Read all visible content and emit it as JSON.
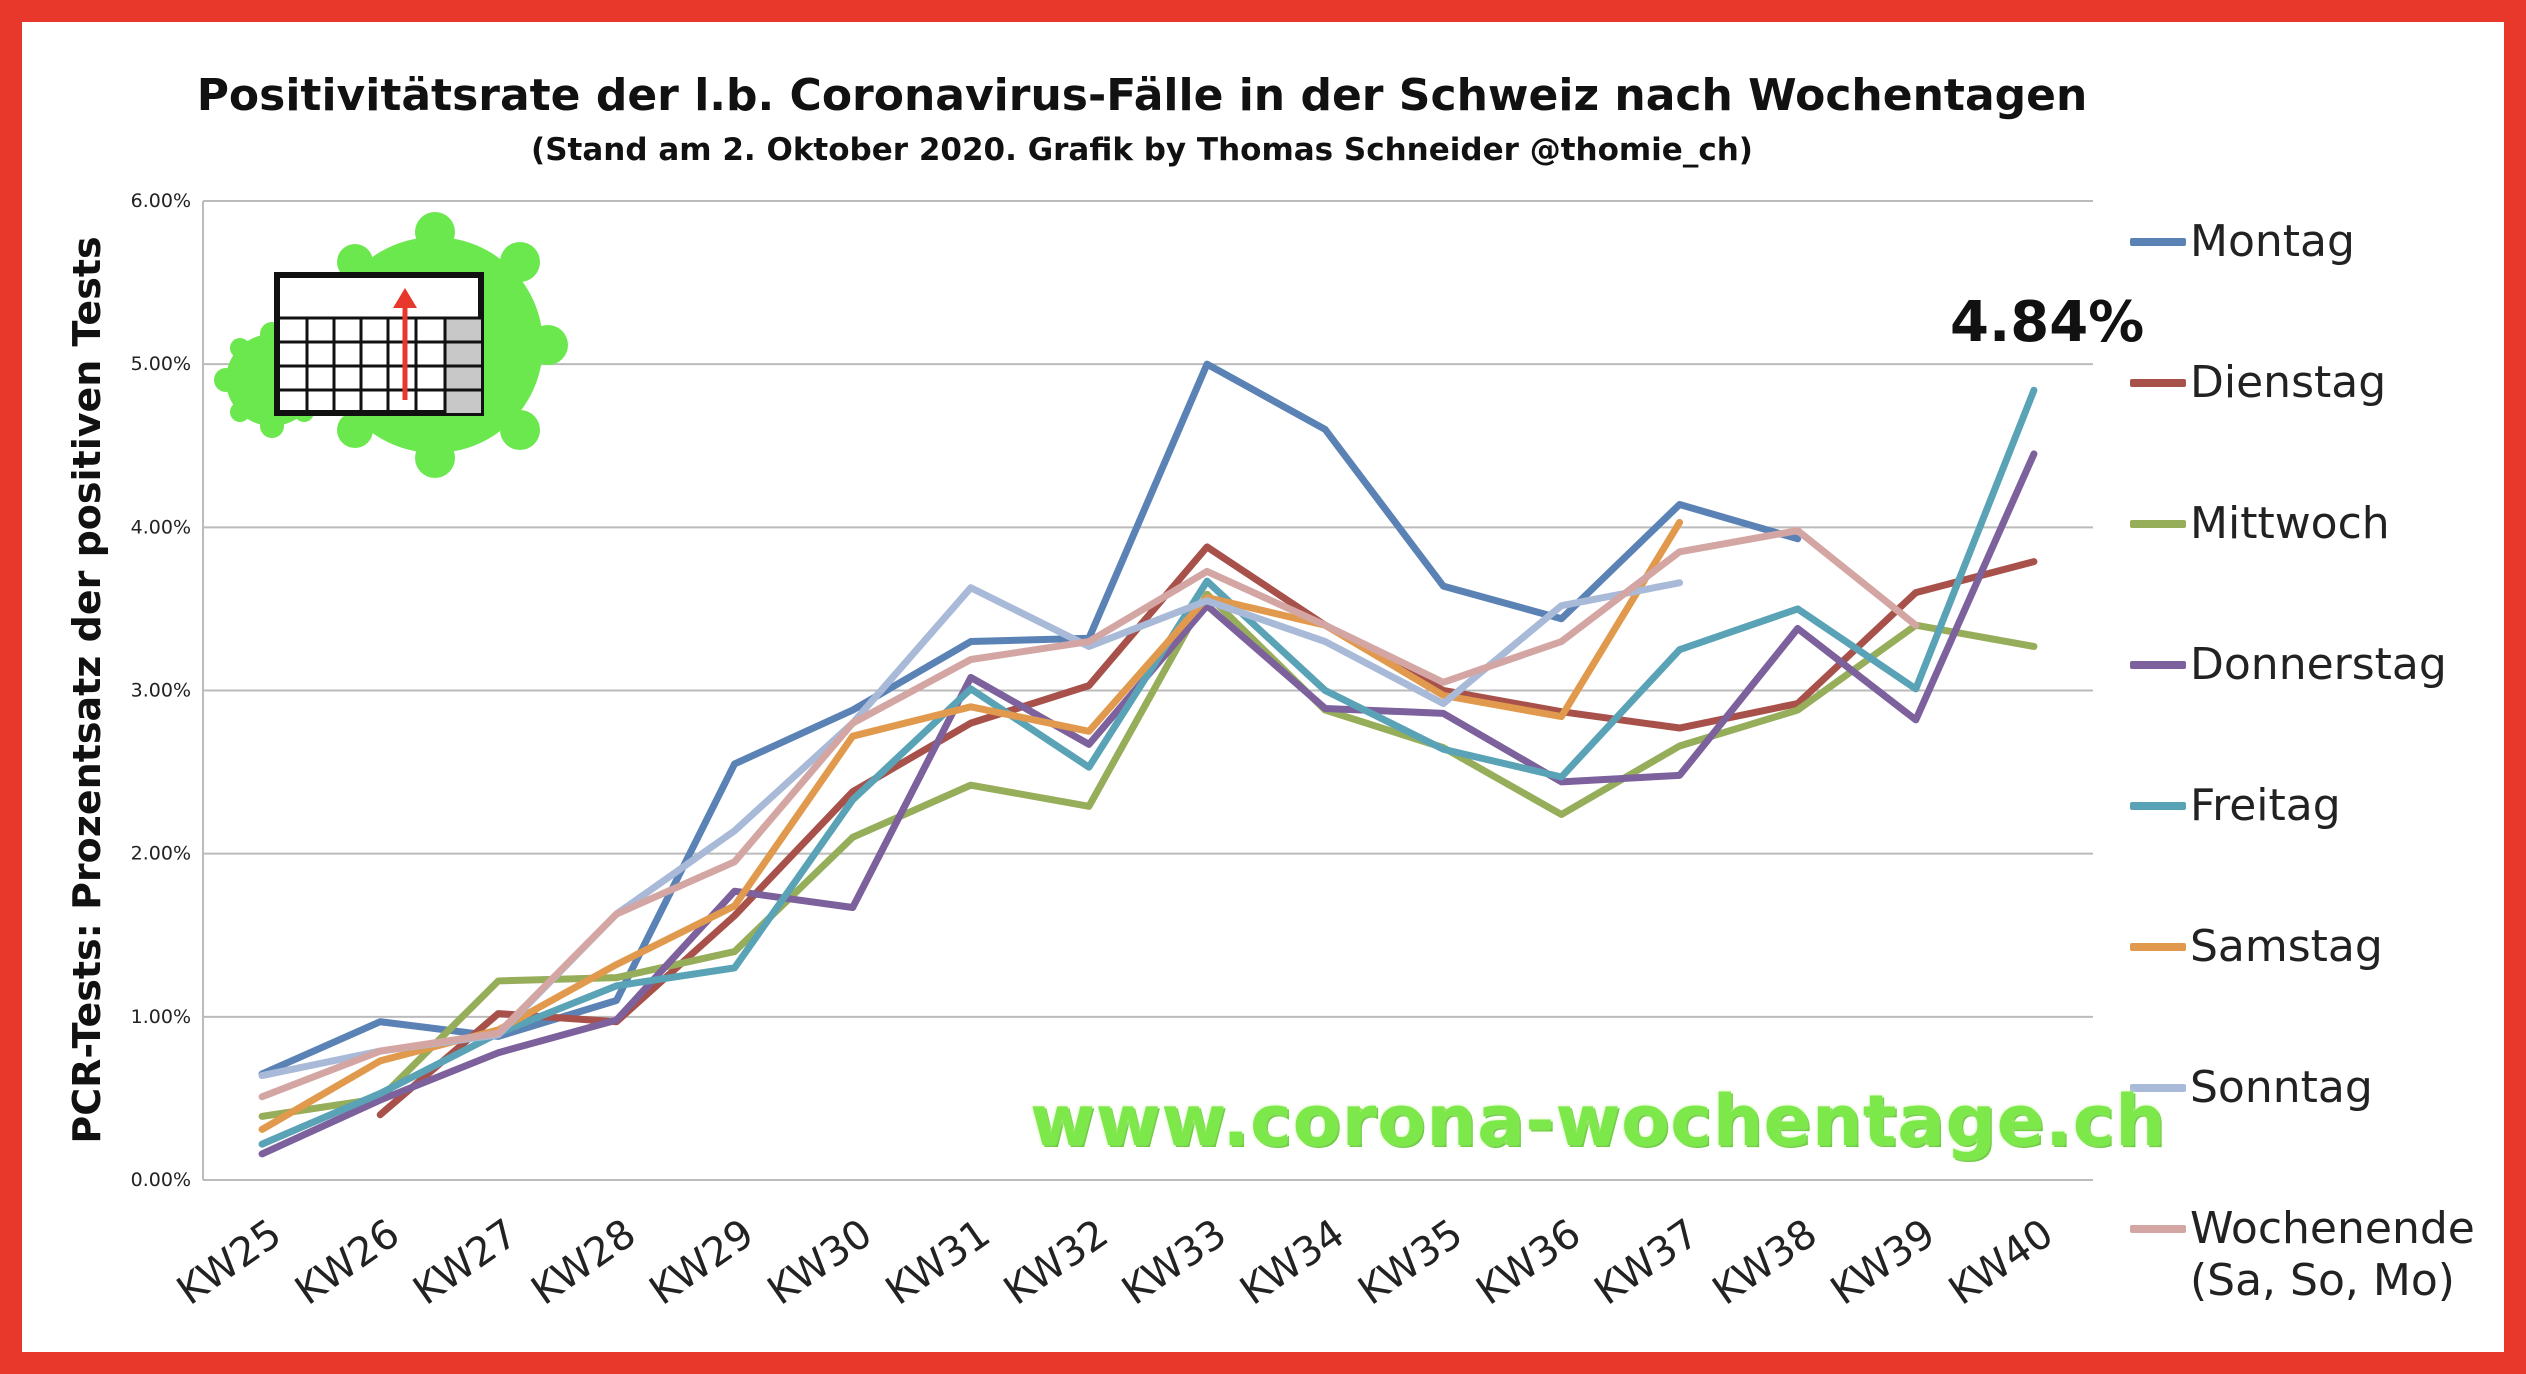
{
  "chart_data": {
    "type": "line",
    "title": "Positivitätsrate der l.b. Coronavirus-Fälle in der Schweiz nach Wochentagen",
    "subtitle": "(Stand am 2. Oktober 2020. Grafik by Thomas Schneider @thomie_ch)",
    "ylabel": "PCR-Tests: Prozentsatz der positiven Tests",
    "xlabel": "",
    "categories": [
      "KW25",
      "KW26",
      "KW27",
      "KW28",
      "KW29",
      "KW30",
      "KW31",
      "KW32",
      "KW33",
      "KW34",
      "KW35",
      "KW36",
      "KW37",
      "KW38",
      "KW39",
      "KW40"
    ],
    "ylim": [
      0,
      6
    ],
    "yticks": [
      "0.00%",
      "1.00%",
      "2.00%",
      "3.00%",
      "4.00%",
      "5.00%",
      "6.00%"
    ],
    "grid": true,
    "legend_position": "right",
    "series": [
      {
        "name": "Montag",
        "color": "#5b82b5",
        "values": [
          0.65,
          0.97,
          0.88,
          1.1,
          2.55,
          2.88,
          3.3,
          3.32,
          5.0,
          4.6,
          3.64,
          3.44,
          4.14,
          3.93,
          null,
          null
        ]
      },
      {
        "name": "Dienstag",
        "color": "#a8514b",
        "values": [
          null,
          0.4,
          1.02,
          0.97,
          1.62,
          2.38,
          2.8,
          3.03,
          3.88,
          3.4,
          3.0,
          2.87,
          2.77,
          2.92,
          3.6,
          3.79
        ]
      },
      {
        "name": "Mittwoch",
        "color": "#96ad5a",
        "values": [
          0.39,
          0.5,
          1.22,
          1.24,
          1.4,
          2.1,
          2.42,
          2.29,
          3.59,
          2.88,
          2.65,
          2.24,
          2.66,
          2.88,
          3.4,
          3.27
        ]
      },
      {
        "name": "Donnerstag",
        "color": "#7c619c",
        "values": [
          0.16,
          0.49,
          0.78,
          0.98,
          1.77,
          1.67,
          3.08,
          2.67,
          3.52,
          2.89,
          2.86,
          2.44,
          2.48,
          3.38,
          2.82,
          4.45
        ]
      },
      {
        "name": "Freitag",
        "color": "#5aa3b7",
        "values": [
          0.22,
          0.53,
          0.9,
          1.19,
          1.3,
          2.33,
          3.01,
          2.53,
          3.67,
          3.0,
          2.64,
          2.47,
          3.25,
          3.5,
          3.01,
          4.84
        ]
      },
      {
        "name": "Samstag",
        "color": "#e19a4d",
        "values": [
          0.31,
          0.73,
          0.92,
          1.32,
          1.68,
          2.72,
          2.9,
          2.75,
          3.57,
          3.4,
          2.97,
          2.84,
          4.03,
          null,
          null,
          null
        ]
      },
      {
        "name": "Sonntag",
        "color": "#a8bad8",
        "values": [
          0.64,
          0.79,
          0.89,
          1.63,
          2.14,
          2.8,
          3.63,
          3.27,
          3.55,
          3.3,
          2.92,
          3.52,
          3.66,
          null,
          null,
          null
        ]
      },
      {
        "name": "Wochenende\n(Sa, So, Mo)",
        "color": "#d4a6a3",
        "values": [
          0.51,
          0.79,
          0.9,
          1.63,
          1.95,
          2.8,
          3.19,
          3.3,
          3.73,
          3.4,
          3.05,
          3.3,
          3.85,
          3.98,
          3.4,
          null
        ]
      }
    ],
    "annotations": [
      "4.84%"
    ]
  },
  "legend_lines": [
    [
      "Montag"
    ],
    [
      "Dienstag"
    ],
    [
      "Mittwoch"
    ],
    [
      "Donnerstag"
    ],
    [
      "Freitag"
    ],
    [
      "Samstag"
    ],
    [
      "Sonntag"
    ],
    [
      "Wochenende",
      "(Sa, So, Mo)"
    ]
  ],
  "callout": "4.84%",
  "watermark": "www.corona-wochentage.ch",
  "logo": {
    "colors": {
      "virus": "#6be84d",
      "grid": "#222222",
      "arrow": "#e8382b",
      "shade": "#c8c8c8"
    }
  }
}
